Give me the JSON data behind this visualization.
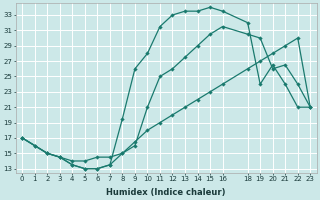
{
  "xlabel": "Humidex (Indice chaleur)",
  "bg_color": "#cce8e8",
  "grid_color": "#ffffff",
  "line_color": "#1a7a6e",
  "xlim": [
    -0.5,
    23.5
  ],
  "ylim": [
    12.5,
    34.5
  ],
  "yticks": [
    13,
    15,
    17,
    19,
    21,
    23,
    25,
    27,
    29,
    31,
    33
  ],
  "xticks": [
    0,
    1,
    2,
    3,
    4,
    5,
    6,
    7,
    8,
    9,
    10,
    11,
    12,
    13,
    14,
    15,
    16,
    18,
    19,
    20,
    21,
    22,
    23
  ],
  "curve1_x": [
    0,
    1,
    2,
    3,
    4,
    5,
    6,
    7,
    8,
    9,
    10,
    11,
    12,
    13,
    14,
    15,
    16,
    18,
    19,
    20,
    21,
    22,
    23
  ],
  "curve1_y": [
    17,
    16,
    15,
    14.5,
    13.5,
    13,
    13,
    13.5,
    19.5,
    26,
    28,
    31.5,
    33,
    33.5,
    33.5,
    34,
    33.5,
    32,
    24,
    26.5,
    24,
    21,
    21
  ],
  "curve2_x": [
    0,
    2,
    3,
    4,
    5,
    6,
    7,
    8,
    9,
    10,
    11,
    12,
    13,
    14,
    15,
    16,
    18,
    19,
    20,
    21,
    22,
    23
  ],
  "curve2_y": [
    17,
    15,
    14.5,
    14,
    14,
    14.5,
    14.5,
    15,
    16,
    21,
    25,
    26,
    27.5,
    29,
    30.5,
    31.5,
    30.5,
    30,
    26,
    26.5,
    24,
    21
  ],
  "curve3_x": [
    0,
    1,
    2,
    3,
    4,
    5,
    6,
    7,
    8,
    9,
    10,
    11,
    12,
    13,
    14,
    15,
    16,
    18,
    19,
    20,
    21,
    22,
    23
  ],
  "curve3_y": [
    17,
    16,
    15,
    14.5,
    13.5,
    13,
    13,
    13.5,
    15,
    16.5,
    18,
    19,
    20,
    21,
    22,
    23,
    24,
    26,
    27,
    28,
    29,
    30,
    21
  ]
}
